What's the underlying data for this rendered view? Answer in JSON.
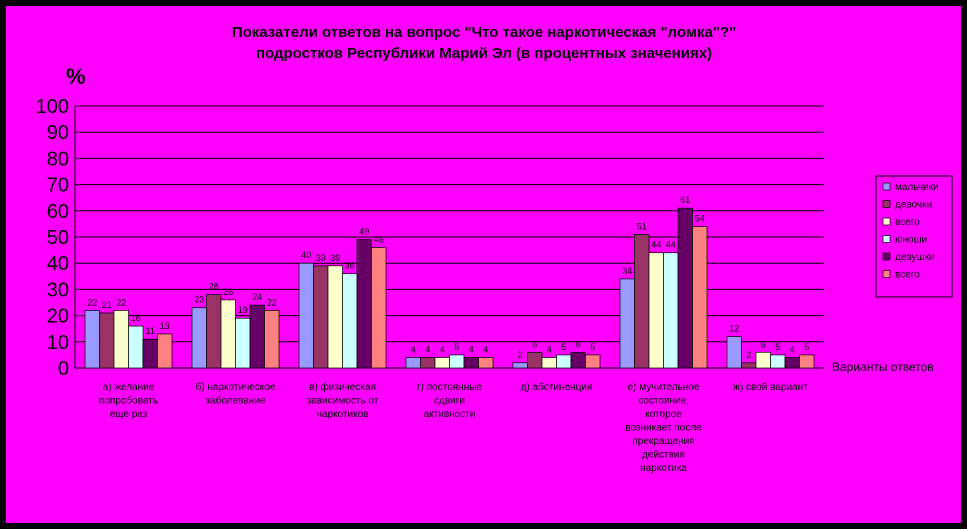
{
  "colors": {
    "frame_bg": "#000000",
    "plot_bg": "#ff00ff",
    "grid": "#000000",
    "text": "#000000",
    "series": [
      "#9999ff",
      "#993366",
      "#ffffcc",
      "#ccffff",
      "#660066",
      "#ff8080"
    ]
  },
  "chart_data": {
    "type": "bar",
    "title_line1": "Показатели ответов на вопрос \"Что такое наркотическая \"ломка\"?\"",
    "title_line2": "подростков Республики Марий Эл (в процентных значениях)",
    "ylabel": "%",
    "xlabel": "Варианты ответов",
    "ylim": [
      0,
      100
    ],
    "yticks": [
      0,
      10,
      20,
      30,
      40,
      50,
      60,
      70,
      80,
      90,
      100
    ],
    "grid": true,
    "legend_position": "right",
    "categories": [
      [
        "а) желание",
        "попробовать",
        "еще раз"
      ],
      [
        "б) наркотическое",
        "заболевание"
      ],
      [
        "в) физическая",
        "зависимость от",
        "наркотиков"
      ],
      [
        "г) постоянные",
        "сдвиги",
        "активности"
      ],
      [
        "д) абстиненция"
      ],
      [
        "е) мучительное",
        "состояние,",
        "которое",
        "возникает после",
        "прекращения",
        "действия",
        "наркотика"
      ],
      [
        "ж) свой вариант"
      ]
    ],
    "series": [
      {
        "name": "мальчики",
        "values": [
          22,
          23,
          40,
          4,
          2,
          34,
          12
        ]
      },
      {
        "name": "девочки",
        "values": [
          21,
          28,
          39,
          4,
          6,
          51,
          2
        ]
      },
      {
        "name": "всего",
        "values": [
          22,
          26,
          39,
          4,
          4,
          44,
          6
        ]
      },
      {
        "name": "юноши",
        "values": [
          16,
          19,
          36,
          5,
          5,
          44,
          5
        ]
      },
      {
        "name": "девушки",
        "values": [
          11,
          24,
          49,
          4,
          6,
          61,
          4
        ]
      },
      {
        "name": "всего",
        "values": [
          13,
          22,
          46,
          4,
          5,
          54,
          5
        ]
      }
    ]
  }
}
